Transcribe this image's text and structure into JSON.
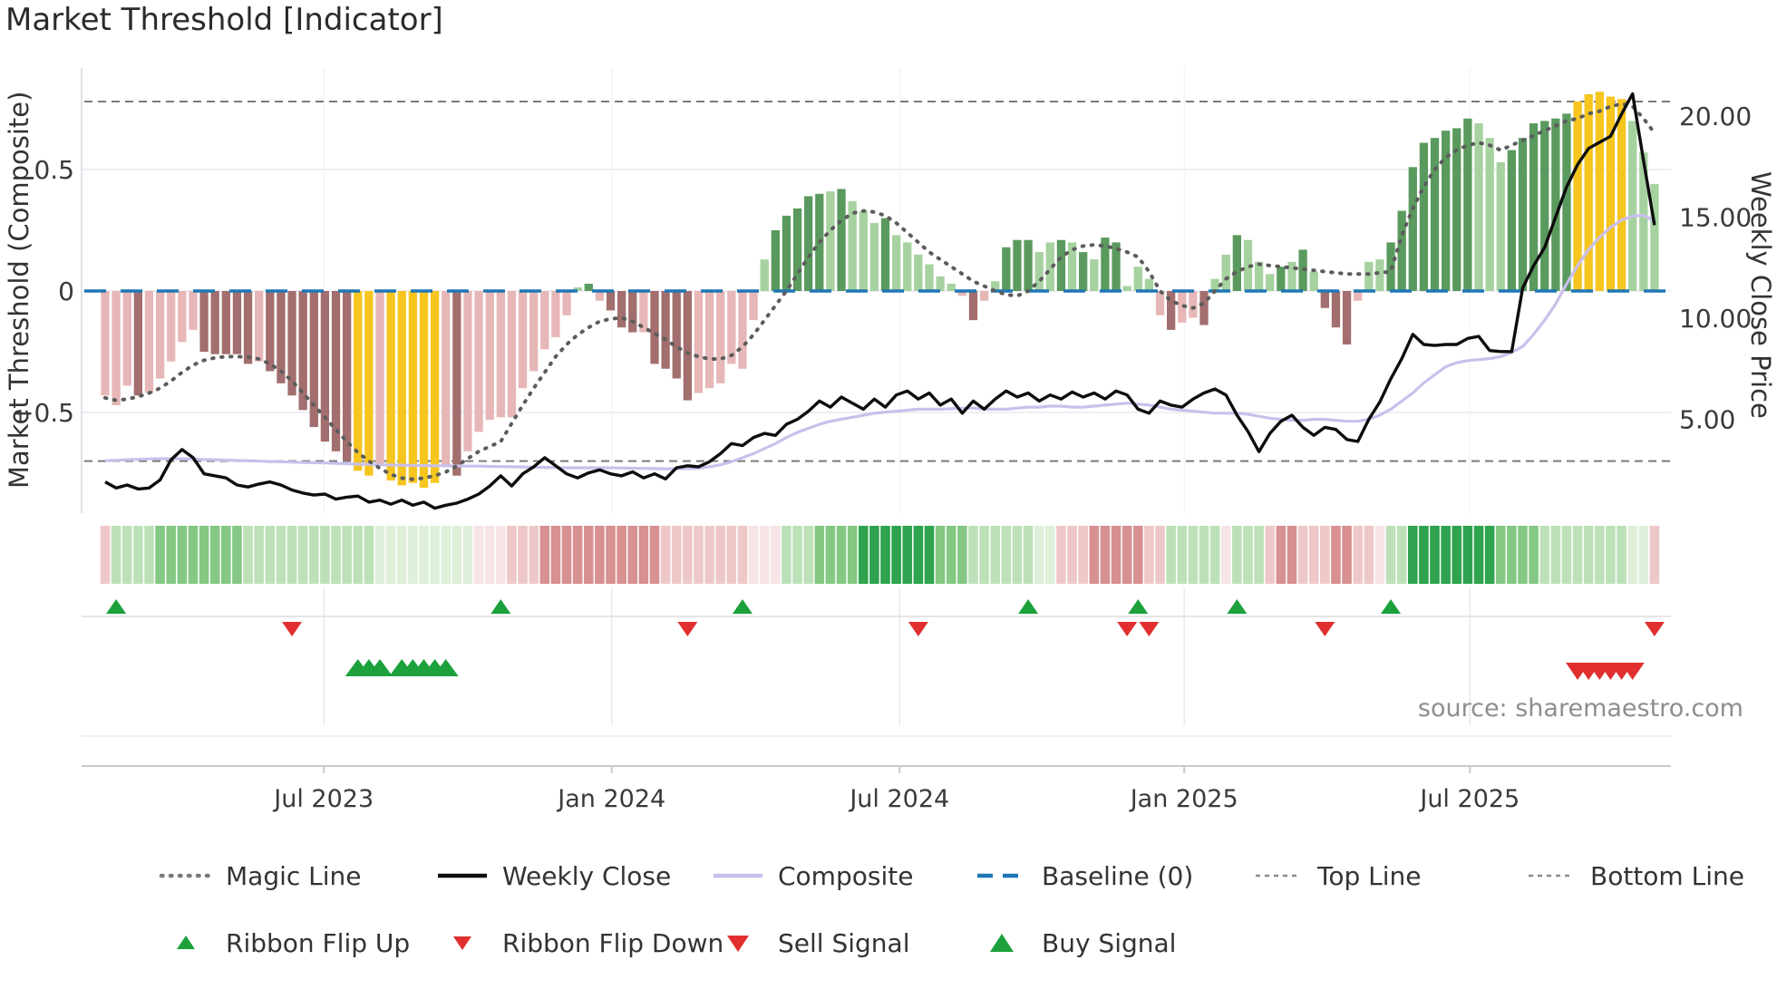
{
  "title": "Market Threshold [Indicator]",
  "source_note": "source: sharemaestro.com",
  "axes": {
    "left": {
      "title": "Market Threshold (Composite)",
      "ticks": [
        "0.5",
        "0",
        "−0.5"
      ],
      "tick_values": [
        0.5,
        0,
        -0.5
      ]
    },
    "right": {
      "title": "Weekly Close Price",
      "ticks": [
        "20.00",
        "15.00",
        "10.00",
        "5.00"
      ],
      "tick_values": [
        20,
        15,
        10,
        5
      ]
    },
    "x": {
      "ticks": [
        "Jul 2023",
        "Jan 2024",
        "Jul 2024",
        "Jan 2025",
        "Jul 2025"
      ],
      "tick_index": [
        19.9,
        46.1,
        72.3,
        98.2,
        124.2
      ]
    }
  },
  "legend": {
    "row1": [
      {
        "label": "Magic Line",
        "type": "magic"
      },
      {
        "label": "Weekly Close",
        "type": "weekly"
      },
      {
        "label": "Composite",
        "type": "composite"
      },
      {
        "label": "Baseline (0)",
        "type": "baseline"
      },
      {
        "label": "Top Line",
        "type": "topline"
      },
      {
        "label": "Bottom Line",
        "type": "bottomline"
      }
    ],
    "row2": [
      {
        "label": "Ribbon Flip Up",
        "type": "flip-up"
      },
      {
        "label": "Ribbon Flip Down",
        "type": "flip-down"
      },
      {
        "label": "Sell Signal",
        "type": "sell"
      },
      {
        "label": "Buy Signal",
        "type": "buy"
      }
    ]
  },
  "colors": {
    "bar_palette": {
      "lp": "#e7b7b7",
      "dr": "#a36e6e",
      "yl": "#f6c51e",
      "lg": "#a6d29f",
      "dg": "#5b9a5e"
    },
    "ribbon_palette": {
      "g3": "#2fa34f",
      "g2": "#84c884",
      "g1": "#bce1b8",
      "g0": "#def0da",
      "r0": "#f7e4e4",
      "r1": "#eec8c8",
      "r2": "#d89090"
    },
    "weekly_close": "#0d0d0d",
    "composite": "#c9c0ec",
    "magic": "#5c5c5c",
    "baseline": "#1f77b4",
    "top_bottom": "#7a7a7a",
    "signal_green": "#1ca13c",
    "signal_red": "#e12f2f",
    "grid": "#e9e9f1",
    "tick_text": "#3a3a3a"
  },
  "chart_data": {
    "type": "combo (histogram bars + lines + signal markers)",
    "n_weeks": 142,
    "x_range_note": "weekly data, ~Feb 2023 to ~Nov 2025",
    "left_axis_range": [
      -0.9,
      0.92
    ],
    "right_axis_range": [
      0,
      22
    ],
    "baseline": 0,
    "top_line": 0.78,
    "bottom_line": -0.7,
    "bars": {
      "values": [
        -0.43,
        -0.47,
        -0.39,
        -0.43,
        -0.42,
        -0.36,
        -0.29,
        -0.21,
        -0.16,
        -0.25,
        -0.26,
        -0.26,
        -0.26,
        -0.3,
        -0.29,
        -0.33,
        -0.38,
        -0.43,
        -0.49,
        -0.56,
        -0.62,
        -0.66,
        -0.7,
        -0.74,
        -0.76,
        -0.72,
        -0.78,
        -0.8,
        -0.79,
        -0.81,
        -0.79,
        -0.72,
        -0.76,
        -0.66,
        -0.58,
        -0.53,
        -0.52,
        -0.52,
        -0.4,
        -0.33,
        -0.24,
        -0.19,
        -0.1,
        0.015,
        0.03,
        -0.04,
        -0.08,
        -0.15,
        -0.17,
        -0.17,
        -0.3,
        -0.32,
        -0.36,
        -0.45,
        -0.42,
        -0.4,
        -0.38,
        -0.3,
        -0.32,
        -0.12,
        0.13,
        0.25,
        0.31,
        0.34,
        0.39,
        0.4,
        0.41,
        0.42,
        0.37,
        0.33,
        0.28,
        0.3,
        0.23,
        0.2,
        0.15,
        0.11,
        0.06,
        0.03,
        -0.02,
        -0.12,
        -0.04,
        0.04,
        0.18,
        0.21,
        0.21,
        0.16,
        0.2,
        0.21,
        0.2,
        0.16,
        0.13,
        0.22,
        0.2,
        0.02,
        0.1,
        0.05,
        -0.1,
        -0.16,
        -0.13,
        -0.11,
        -0.14,
        0.05,
        0.15,
        0.23,
        0.21,
        0.12,
        0.07,
        0.1,
        0.12,
        0.17,
        0.08,
        -0.07,
        -0.15,
        -0.22,
        -0.04,
        0.12,
        0.13,
        0.2,
        0.33,
        0.51,
        0.61,
        0.63,
        0.66,
        0.67,
        0.71,
        0.69,
        0.63,
        0.53,
        0.58,
        0.63,
        0.69,
        0.7,
        0.71,
        0.73,
        0.78,
        0.81,
        0.82,
        0.8,
        0.79,
        0.7,
        0.57,
        0.44
      ],
      "colors": [
        "lp",
        "lp",
        "lp",
        "dr",
        "lp",
        "lp",
        "lp",
        "lp",
        "lp",
        "dr",
        "dr",
        "dr",
        "dr",
        "dr",
        "lp",
        "dr",
        "dr",
        "dr",
        "dr",
        "dr",
        "dr",
        "dr",
        "dr",
        "yl",
        "yl",
        "lp",
        "yl",
        "yl",
        "yl",
        "yl",
        "yl",
        "lp",
        "dr",
        "lp",
        "lp",
        "lp",
        "lp",
        "lp",
        "lp",
        "lp",
        "lp",
        "lp",
        "lp",
        "lg",
        "dg",
        "lp",
        "dr",
        "dr",
        "dr",
        "lp",
        "dr",
        "dr",
        "dr",
        "dr",
        "lp",
        "lp",
        "lp",
        "lp",
        "lp",
        "lp",
        "lg",
        "dg",
        "dg",
        "dg",
        "dg",
        "dg",
        "lg",
        "dg",
        "lg",
        "lg",
        "lg",
        "dg",
        "lg",
        "lg",
        "lg",
        "lg",
        "lg",
        "lg",
        "lp",
        "dr",
        "lp",
        "lg",
        "dg",
        "dg",
        "dg",
        "lg",
        "lg",
        "dg",
        "lg",
        "dg",
        "lg",
        "dg",
        "dg",
        "lg",
        "lg",
        "lg",
        "lp",
        "dr",
        "lp",
        "lp",
        "dr",
        "lg",
        "lg",
        "dg",
        "lg",
        "lg",
        "lg",
        "dg",
        "lg",
        "dg",
        "lg",
        "dr",
        "dr",
        "dr",
        "lp",
        "lg",
        "lg",
        "dg",
        "dg",
        "dg",
        "dg",
        "dg",
        "dg",
        "dg",
        "dg",
        "lg",
        "lg",
        "lg",
        "dg",
        "dg",
        "dg",
        "dg",
        "dg",
        "dg",
        "yl",
        "yl",
        "yl",
        "yl",
        "yl",
        "lg",
        "lg",
        "lg"
      ]
    },
    "weekly_close": [
      1.9,
      1.6,
      1.75,
      1.55,
      1.6,
      2.0,
      3.0,
      3.5,
      3.1,
      2.3,
      2.2,
      2.1,
      1.75,
      1.65,
      1.8,
      1.9,
      1.75,
      1.5,
      1.35,
      1.25,
      1.3,
      1.05,
      1.15,
      1.2,
      0.9,
      1.0,
      0.8,
      1.0,
      0.75,
      0.9,
      0.6,
      0.75,
      0.85,
      1.05,
      1.3,
      1.7,
      2.2,
      1.7,
      2.3,
      2.65,
      3.1,
      2.7,
      2.3,
      2.1,
      2.35,
      2.5,
      2.3,
      2.2,
      2.4,
      2.1,
      2.3,
      2.05,
      2.6,
      2.7,
      2.65,
      2.9,
      3.3,
      3.8,
      3.7,
      4.1,
      4.3,
      4.2,
      4.75,
      5.0,
      5.4,
      5.9,
      5.6,
      6.1,
      5.8,
      5.5,
      6.0,
      5.6,
      6.2,
      6.4,
      6.0,
      6.3,
      5.7,
      6.0,
      5.3,
      5.9,
      5.5,
      6.0,
      6.4,
      6.1,
      6.3,
      5.9,
      6.2,
      6.0,
      6.35,
      6.1,
      6.3,
      6.0,
      6.4,
      6.2,
      5.5,
      5.3,
      5.9,
      5.7,
      5.6,
      6.0,
      6.3,
      6.5,
      6.2,
      5.2,
      4.4,
      3.4,
      4.3,
      4.9,
      5.2,
      4.6,
      4.2,
      4.6,
      4.5,
      4.0,
      3.9,
      5.0,
      5.85,
      7.0,
      8.0,
      9.2,
      8.7,
      8.65,
      8.7,
      8.7,
      9.0,
      9.1,
      8.4,
      8.35,
      8.35,
      11.5,
      12.6,
      13.5,
      15.0,
      16.5,
      17.6,
      18.4,
      18.7,
      19.0,
      20.1,
      21.1,
      17.8,
      14.6
    ],
    "composite": [
      2.95,
      2.97,
      3.0,
      3.02,
      3.04,
      3.05,
      3.05,
      3.05,
      3.03,
      3.01,
      3.0,
      2.98,
      2.96,
      2.95,
      2.93,
      2.91,
      2.9,
      2.88,
      2.86,
      2.85,
      2.84,
      2.82,
      2.8,
      2.78,
      2.77,
      2.75,
      2.74,
      2.73,
      2.72,
      2.71,
      2.7,
      2.7,
      2.69,
      2.68,
      2.68,
      2.67,
      2.66,
      2.65,
      2.64,
      2.63,
      2.62,
      2.61,
      2.6,
      2.6,
      2.6,
      2.6,
      2.6,
      2.59,
      2.58,
      2.57,
      2.56,
      2.55,
      2.55,
      2.56,
      2.58,
      2.65,
      2.75,
      2.9,
      3.1,
      3.3,
      3.55,
      3.8,
      4.1,
      4.35,
      4.55,
      4.75,
      4.9,
      5.0,
      5.1,
      5.2,
      5.3,
      5.35,
      5.4,
      5.45,
      5.5,
      5.5,
      5.5,
      5.52,
      5.55,
      5.55,
      5.5,
      5.5,
      5.5,
      5.55,
      5.6,
      5.6,
      5.65,
      5.65,
      5.6,
      5.6,
      5.65,
      5.7,
      5.75,
      5.8,
      5.75,
      5.7,
      5.6,
      5.5,
      5.45,
      5.4,
      5.35,
      5.3,
      5.3,
      5.3,
      5.25,
      5.15,
      5.05,
      5.0,
      4.95,
      4.95,
      5.0,
      5.0,
      4.95,
      4.9,
      4.9,
      5.0,
      5.2,
      5.5,
      5.9,
      6.3,
      6.8,
      7.2,
      7.6,
      7.8,
      7.9,
      7.95,
      8.0,
      8.1,
      8.3,
      8.6,
      9.2,
      9.9,
      10.7,
      11.7,
      12.6,
      13.4,
      14.0,
      14.5,
      14.85,
      15.05,
      15.1,
      14.8
    ],
    "magic_line": [
      -0.44,
      -0.45,
      -0.445,
      -0.435,
      -0.42,
      -0.4,
      -0.37,
      -0.335,
      -0.305,
      -0.285,
      -0.275,
      -0.27,
      -0.27,
      -0.272,
      -0.28,
      -0.3,
      -0.33,
      -0.37,
      -0.42,
      -0.47,
      -0.52,
      -0.57,
      -0.62,
      -0.665,
      -0.7,
      -0.73,
      -0.755,
      -0.77,
      -0.775,
      -0.77,
      -0.76,
      -0.745,
      -0.72,
      -0.69,
      -0.66,
      -0.64,
      -0.62,
      -0.545,
      -0.47,
      -0.4,
      -0.335,
      -0.27,
      -0.22,
      -0.18,
      -0.15,
      -0.125,
      -0.115,
      -0.11,
      -0.125,
      -0.15,
      -0.175,
      -0.2,
      -0.23,
      -0.255,
      -0.27,
      -0.28,
      -0.28,
      -0.265,
      -0.23,
      -0.18,
      -0.12,
      -0.06,
      0.0,
      0.07,
      0.14,
      0.2,
      0.25,
      0.29,
      0.32,
      0.33,
      0.325,
      0.31,
      0.28,
      0.24,
      0.2,
      0.16,
      0.13,
      0.1,
      0.07,
      0.04,
      0.02,
      0.0,
      -0.015,
      -0.02,
      0.0,
      0.04,
      0.09,
      0.14,
      0.17,
      0.185,
      0.19,
      0.185,
      0.175,
      0.16,
      0.14,
      0.08,
      0.0,
      -0.04,
      -0.06,
      -0.07,
      -0.05,
      0.0,
      0.05,
      0.08,
      0.1,
      0.11,
      0.105,
      0.1,
      0.095,
      0.09,
      0.085,
      0.08,
      0.075,
      0.07,
      0.07,
      0.07,
      0.075,
      0.08,
      0.23,
      0.34,
      0.43,
      0.5,
      0.55,
      0.58,
      0.6,
      0.61,
      0.6,
      0.58,
      0.6,
      0.62,
      0.64,
      0.66,
      0.68,
      0.7,
      0.71,
      0.73,
      0.74,
      0.76,
      0.77,
      0.76,
      0.71,
      0.65
    ],
    "ribbon": [
      "r1",
      "g1",
      "g1",
      "g1",
      "g1",
      "g2",
      "g2",
      "g2",
      "g2",
      "g2",
      "g2",
      "g2",
      "g2",
      "g1",
      "g1",
      "g1",
      "g1",
      "g1",
      "g1",
      "g1",
      "g1",
      "g1",
      "g1",
      "g1",
      "g1",
      "g0",
      "g0",
      "g0",
      "g0",
      "g0",
      "g0",
      "g0",
      "g0",
      "g0",
      "r0",
      "r0",
      "r0",
      "r1",
      "r1",
      "r1",
      "r2",
      "r2",
      "r2",
      "r2",
      "r2",
      "r2",
      "r2",
      "r2",
      "r2",
      "r2",
      "r2",
      "r1",
      "r1",
      "r1",
      "r1",
      "r1",
      "r1",
      "r1",
      "r1",
      "r0",
      "r0",
      "r0",
      "g1",
      "g1",
      "g1",
      "g2",
      "g2",
      "g2",
      "g2",
      "g3",
      "g3",
      "g3",
      "g3",
      "g3",
      "g3",
      "g3",
      "g2",
      "g2",
      "g2",
      "g1",
      "g1",
      "g1",
      "g1",
      "g1",
      "g1",
      "g0",
      "g0",
      "r1",
      "r1",
      "r1",
      "r2",
      "r2",
      "r2",
      "r2",
      "r2",
      "r1",
      "r1",
      "g1",
      "g1",
      "g1",
      "g1",
      "g1",
      "r0",
      "g1",
      "g1",
      "g1",
      "r1",
      "r2",
      "r2",
      "r1",
      "r1",
      "r1",
      "r2",
      "r2",
      "r1",
      "r1",
      "r0",
      "g1",
      "g1",
      "g3",
      "g3",
      "g3",
      "g3",
      "g3",
      "g3",
      "g3",
      "g3",
      "g2",
      "g2",
      "g2",
      "g2",
      "g1",
      "g1",
      "g1",
      "g1",
      "g1",
      "g1",
      "g1",
      "g1",
      "g0",
      "g0",
      "r1"
    ],
    "signals": {
      "ribbon_flip_up_index": [
        1,
        36,
        58,
        84,
        94,
        103,
        117
      ],
      "ribbon_flip_down_index": [
        17,
        53,
        74,
        93,
        95,
        111,
        141
      ],
      "buy_signal_index": [
        23,
        24,
        25,
        27,
        28,
        29,
        30,
        31
      ],
      "sell_signal_index": [
        134,
        135,
        136,
        137,
        138,
        139
      ]
    },
    "grid": "light horizontal at 0.5 / 0 / -0.5, faint vertical at each x tick",
    "legend_position": "bottom, two centered rows"
  }
}
